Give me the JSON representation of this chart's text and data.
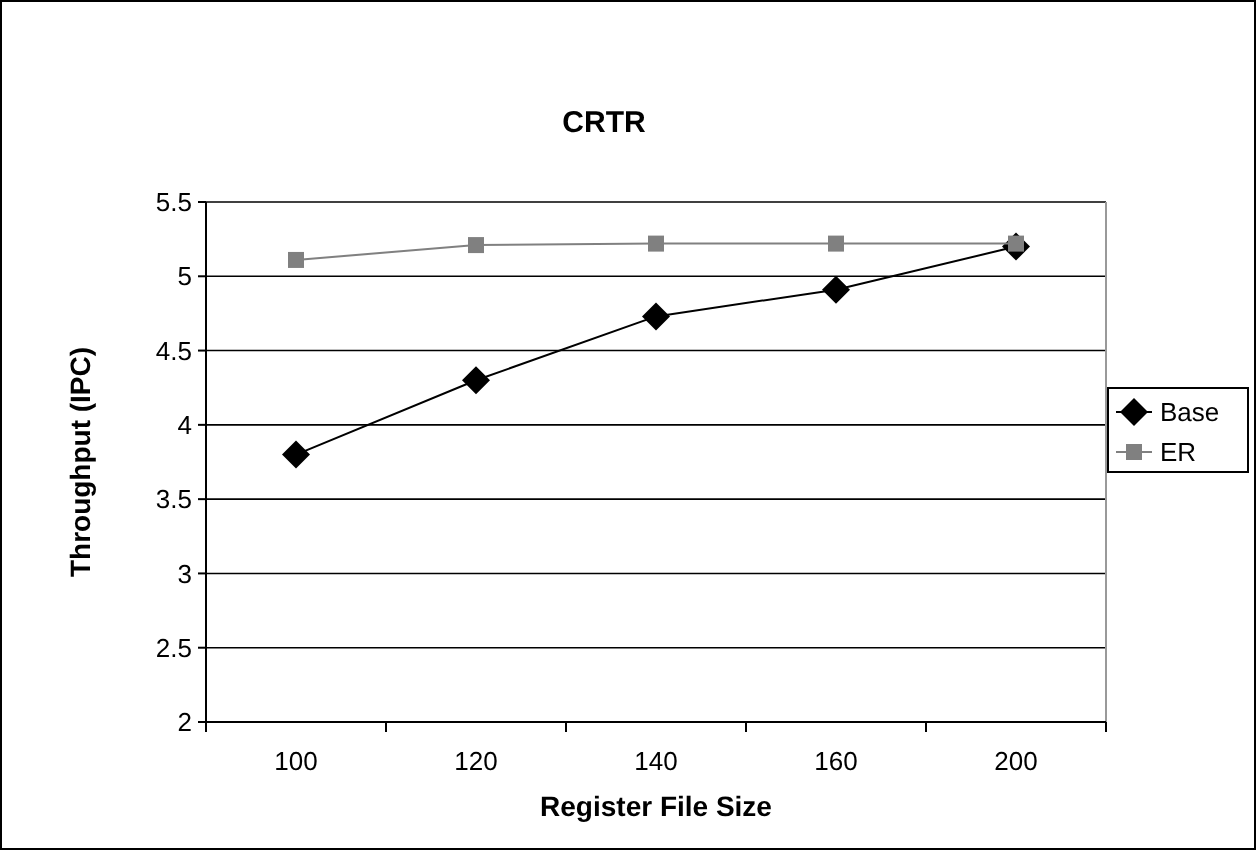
{
  "chart_data": {
    "type": "line",
    "title": "CRTR",
    "xlabel": "Register File Size",
    "ylabel": "Throughput (IPC)",
    "categories": [
      "100",
      "120",
      "140",
      "160",
      "200"
    ],
    "series": [
      {
        "name": "Base",
        "color": "#000000",
        "marker": "diamond",
        "values": [
          3.8,
          4.3,
          4.73,
          4.91,
          5.2
        ]
      },
      {
        "name": "ER",
        "color": "#808080",
        "marker": "square",
        "values": [
          5.11,
          5.21,
          5.22,
          5.22,
          5.22
        ]
      }
    ],
    "ylim": [
      2,
      5.5
    ],
    "yticks": [
      2,
      2.5,
      3,
      3.5,
      4,
      4.5,
      5,
      5.5
    ],
    "grid": "y",
    "legend": "right"
  }
}
